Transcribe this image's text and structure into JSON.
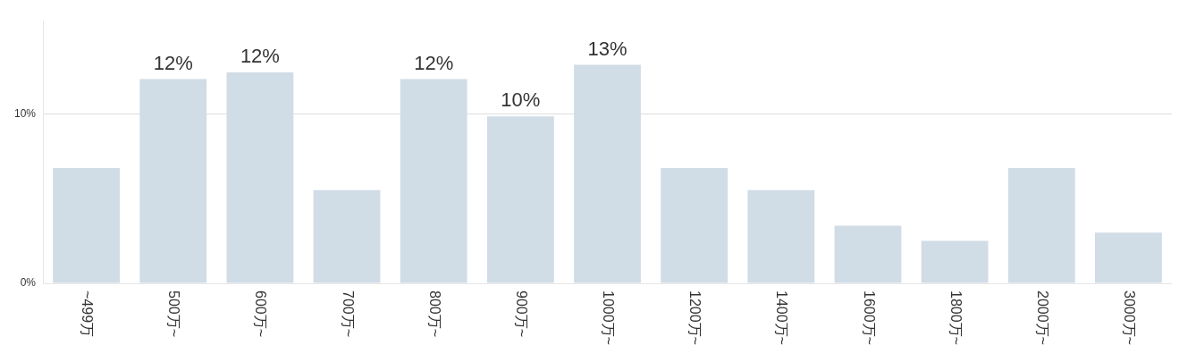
{
  "chart_data": {
    "type": "bar",
    "categories": [
      "~499万",
      "500万~",
      "600万~",
      "700万~",
      "800万~",
      "900万~",
      "1000万~",
      "1200万~",
      "1400万~",
      "1600万~",
      "1800万~",
      "2000万~",
      "3000万~"
    ],
    "values": [
      6.8,
      12.05,
      12.45,
      5.5,
      12.05,
      9.85,
      12.9,
      6.8,
      5.5,
      3.4,
      2.5,
      6.8,
      3.0
    ],
    "value_labels": [
      null,
      "12%",
      "12%",
      null,
      "12%",
      "10%",
      "13%",
      null,
      null,
      null,
      null,
      null,
      null
    ],
    "color": "#d0dce6",
    "ylim": [
      0,
      15.5
    ],
    "yticks": [
      {
        "value": 0,
        "label": "0%"
      },
      {
        "value": 10,
        "label": "10%"
      }
    ],
    "grid": "y",
    "legend": false
  }
}
